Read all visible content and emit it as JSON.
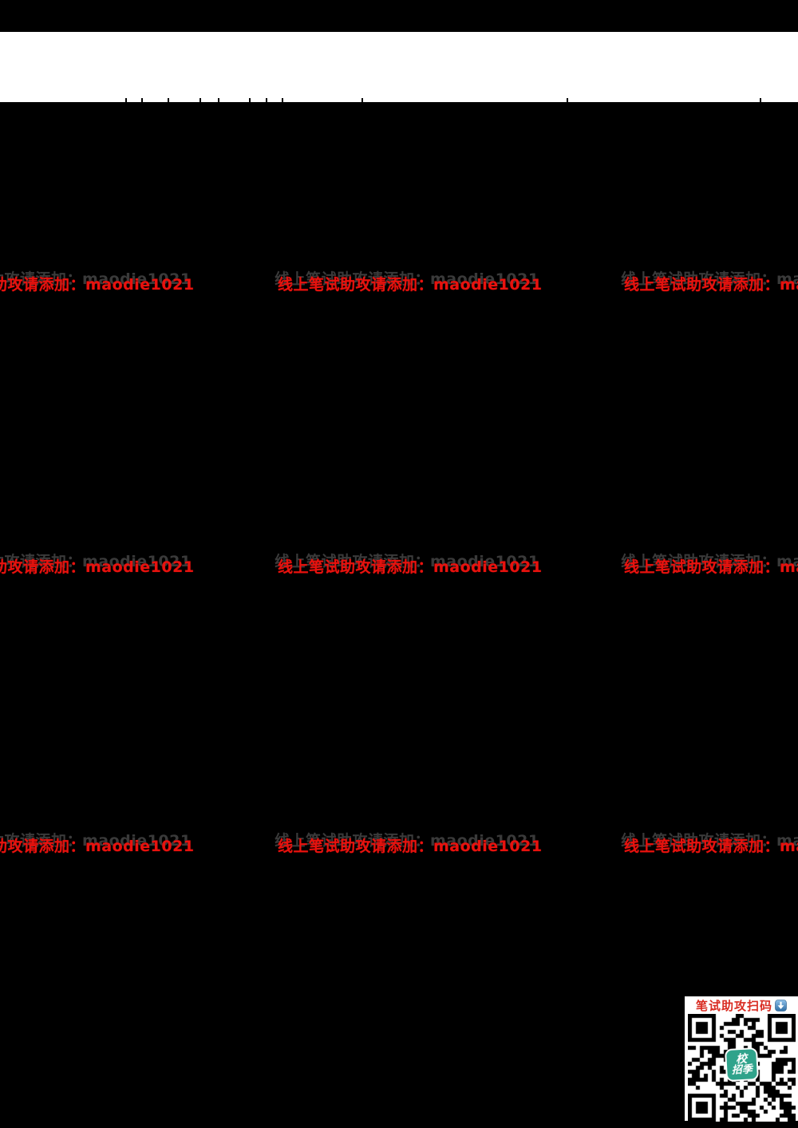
{
  "document": {
    "background_color": "#000000",
    "band": {
      "color": "#ffffff",
      "tick_positions": [
        157,
        177,
        210,
        250,
        273,
        312,
        333,
        353,
        453,
        710,
        952
      ]
    },
    "watermark": {
      "text_full": "线上笔试助攻请添加：maodie1021",
      "label": "线上笔试助攻请添加：",
      "contact": "maodie1021",
      "color": "#e8120e",
      "ghost_color": "#3a3a3a"
    },
    "qr_panel": {
      "title": "笔试助攻扫码",
      "title_color": "#d92b21",
      "badge_line1": "校",
      "badge_line2": "招季",
      "badge_color": "#2fa38b",
      "icon": "download-arrow-icon"
    }
  }
}
